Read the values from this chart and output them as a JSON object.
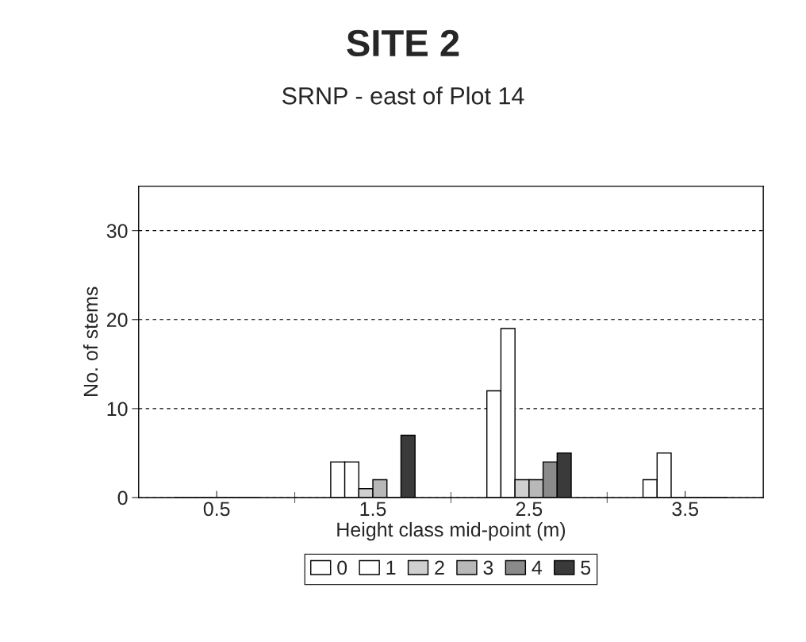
{
  "chart_data": {
    "type": "bar",
    "title": "SITE 2",
    "subtitle": "SRNP - east of Plot 14",
    "xlabel": "Height class mid-point (m)",
    "ylabel": "No. of stems",
    "categories": [
      "0.5",
      "1.5",
      "2.5",
      "3.5"
    ],
    "series": [
      {
        "name": "0",
        "color": "#ffffff",
        "values": [
          0,
          4,
          12,
          2
        ]
      },
      {
        "name": "1",
        "color": "#ffffff",
        "values": [
          0,
          4,
          19,
          5
        ]
      },
      {
        "name": "2",
        "color": "#d0d0d0",
        "values": [
          0,
          1,
          2,
          0
        ]
      },
      {
        "name": "3",
        "color": "#b8b8b8",
        "values": [
          0,
          2,
          2,
          0
        ]
      },
      {
        "name": "4",
        "color": "#8a8a8a",
        "values": [
          0,
          0,
          4,
          0
        ]
      },
      {
        "name": "5",
        "color": "#3a3a3a",
        "values": [
          0,
          7,
          5,
          0
        ]
      }
    ],
    "ylim": [
      0,
      35
    ],
    "yticks": [
      0,
      10,
      20,
      30
    ],
    "grid": "y",
    "legend": "bottom"
  }
}
